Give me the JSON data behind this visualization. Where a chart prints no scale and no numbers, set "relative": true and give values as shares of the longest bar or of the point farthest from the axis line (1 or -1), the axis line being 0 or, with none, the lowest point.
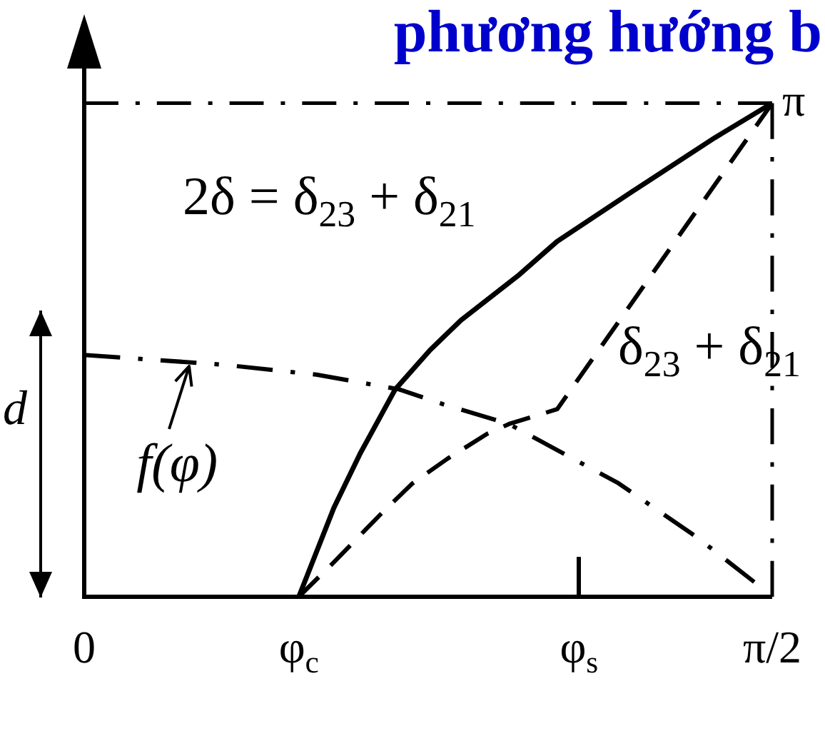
{
  "chart_data": {
    "type": "line",
    "title": "phương hướng b",
    "relative": true,
    "xlim": [
      0,
      1.571
    ],
    "xticks": [
      0,
      {
        "value": 0.49,
        "label": "φ$_{c}$"
      },
      {
        "value": 1.13,
        "label": "φ$_{s}$"
      },
      {
        "value": 1.571,
        "label": "π/2"
      }
    ],
    "series": [
      {
        "name": "2δ = δ$_{23}$ + δ$_{21}$",
        "color": "#000000",
        "line_style": "solid",
        "x": [
          0.49,
          0.53,
          0.57,
          0.63,
          0.71,
          0.79,
          0.86,
          0.99,
          1.08,
          1.25,
          1.44,
          1.571
        ],
        "values": [
          0,
          0.09,
          0.18,
          0.29,
          0.42,
          0.5,
          0.56,
          0.65,
          0.72,
          0.82,
          0.93,
          1
        ]
      },
      {
        "name": "δ$_{23}$ + δ$_{21}$",
        "color": "#000000",
        "line_style": "dashed",
        "x": [
          0.49,
          0.57,
          0.68,
          0.75,
          0.83,
          0.92,
          0.97,
          1.08,
          1.571
        ],
        "values": [
          0,
          0.07,
          0.17,
          0.23,
          0.28,
          0.33,
          0.35,
          0.38,
          1
        ]
      },
      {
        "color": "#000000",
        "line_style": "dashdot",
        "x": [
          0,
          0.32,
          0.53,
          0.72,
          0.82,
          0.97,
          1.22,
          1.4,
          1.53
        ],
        "values": [
          0.49,
          0.47,
          0.45,
          0.42,
          0.39,
          0.35,
          0.23,
          0.12,
          0.03
        ]
      }
    ],
    "ref_lines": [
      {
        "axis": "y",
        "value": 1,
        "label": "π",
        "color": "#000000",
        "line_style": "dashdot"
      },
      {
        "axis": "x",
        "value": 1.571,
        "color": "#000000",
        "line_style": "dashdot"
      }
    ],
    "annotations": [
      "d",
      {
        "text": "f(φ)",
        "x": 0.24,
        "y": 0.47
      }
    ]
  }
}
